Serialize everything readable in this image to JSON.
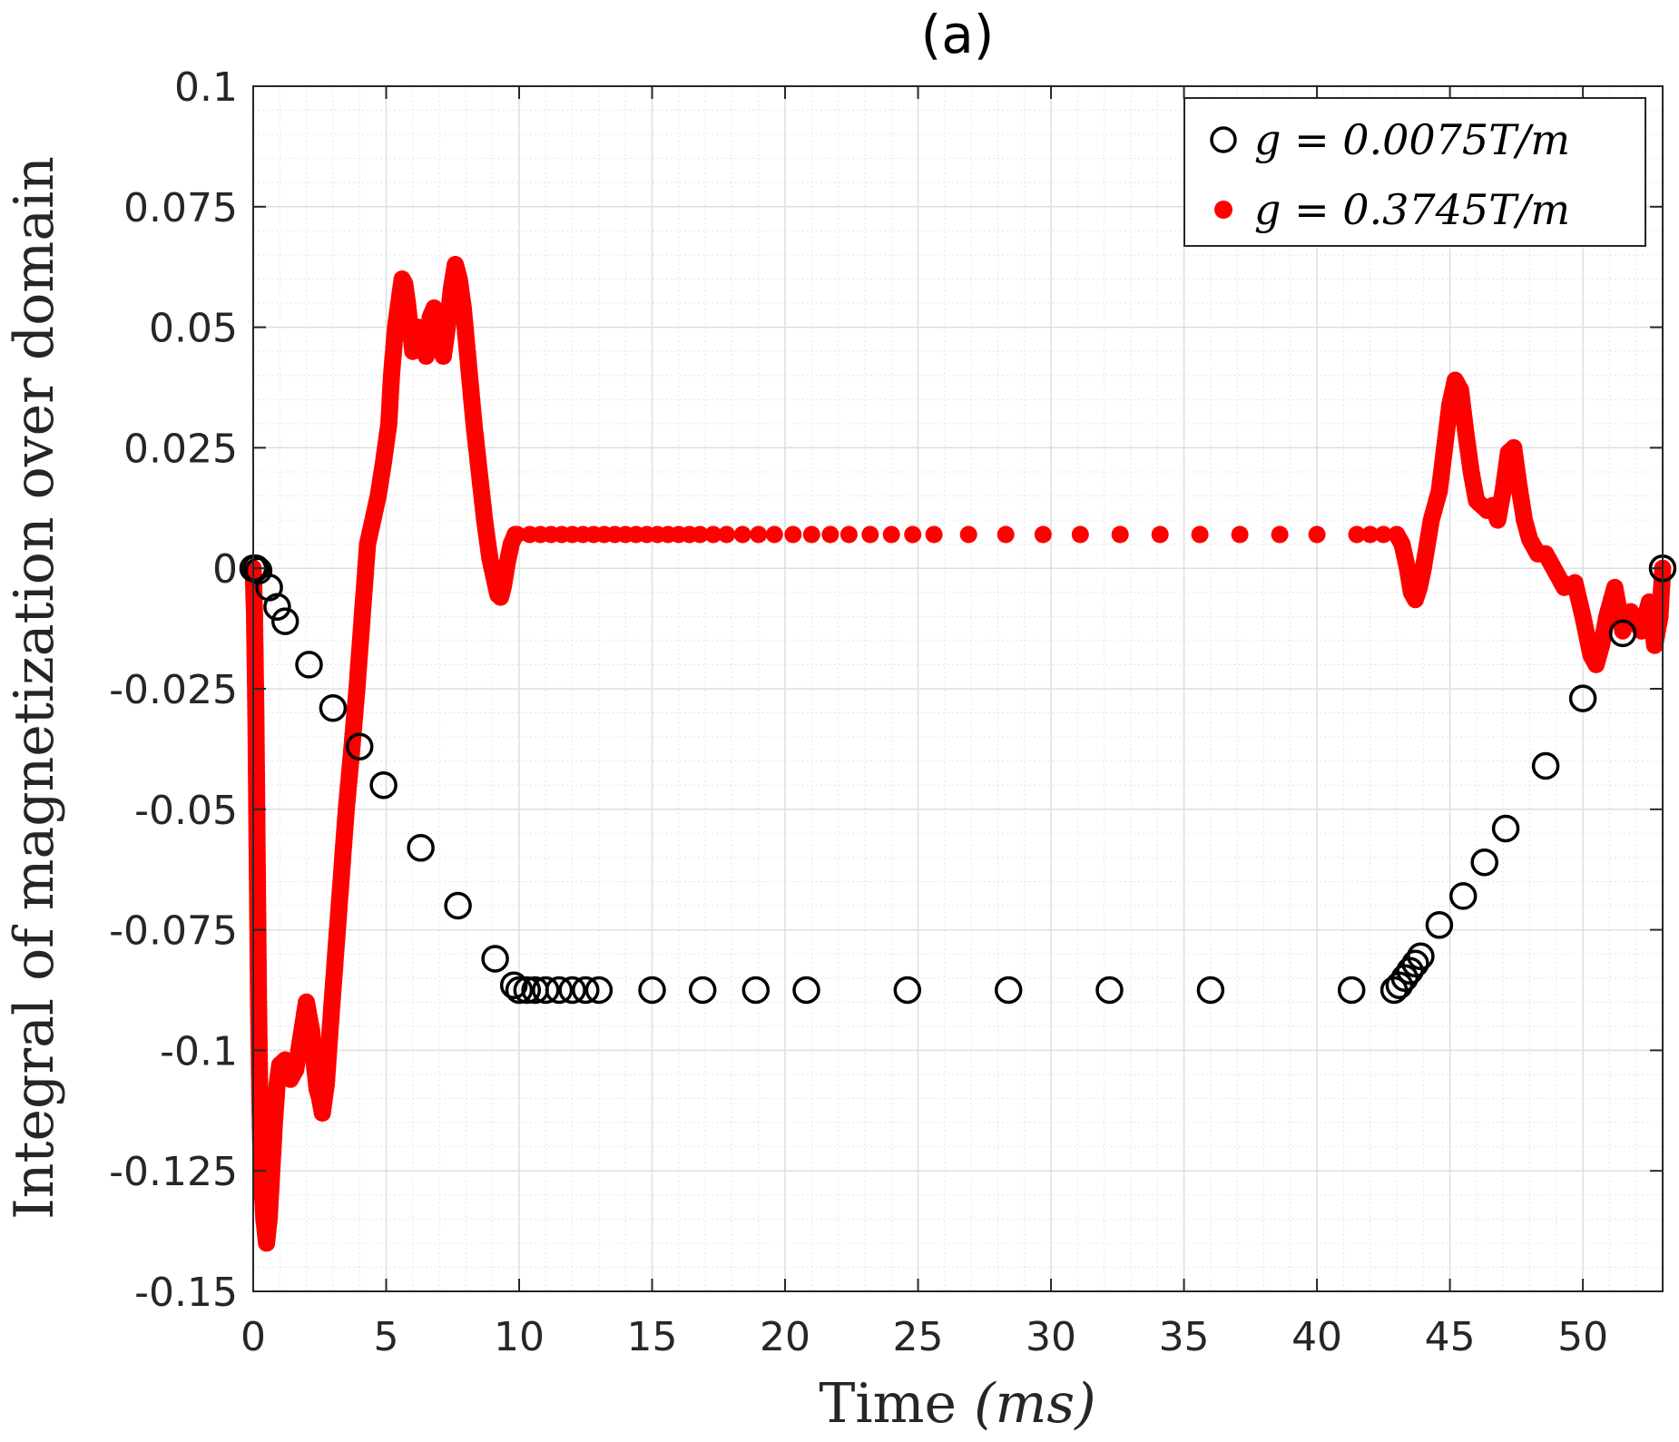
{
  "chart_data": {
    "type": "scatter",
    "title": "(a)",
    "xlabel": "Time (ms)",
    "xlabel_main": "Time",
    "xlabel_unit": "(ms)",
    "ylabel": "Integral of magnetization over domain",
    "xlim": [
      0,
      53
    ],
    "ylim": [
      -0.15,
      0.1
    ],
    "xticks": [
      0,
      5,
      10,
      15,
      20,
      25,
      30,
      35,
      40,
      45,
      50
    ],
    "xtick_labels": [
      "0",
      "5",
      "10",
      "15",
      "20",
      "25",
      "30",
      "35",
      "40",
      "45",
      "50"
    ],
    "yticks": [
      0.1,
      0.075,
      0.05,
      0.025,
      0,
      -0.025,
      -0.05,
      -0.075,
      -0.1,
      -0.125,
      -0.15
    ],
    "ytick_labels": [
      "0.1",
      "0.075",
      "0.05",
      "0.025",
      "0",
      "-0.025",
      "-0.05",
      "-0.075",
      "-0.1",
      "-0.125",
      "-0.15"
    ],
    "grid": true,
    "minor_grid": true,
    "legend_position": "top-right",
    "series": [
      {
        "name": "g = 0.0075T/m",
        "marker": "open-circle",
        "color": "#000000",
        "points": [
          [
            0,
            0
          ],
          [
            0.1,
            0
          ],
          [
            0.2,
            -0.0005
          ],
          [
            0.6,
            -0.004
          ],
          [
            0.9,
            -0.008
          ],
          [
            1.2,
            -0.011
          ],
          [
            2.1,
            -0.02
          ],
          [
            3.0,
            -0.029
          ],
          [
            4.0,
            -0.037
          ],
          [
            4.9,
            -0.045
          ],
          [
            6.3,
            -0.058
          ],
          [
            7.7,
            -0.07
          ],
          [
            9.1,
            -0.081
          ],
          [
            9.8,
            -0.0865
          ],
          [
            10.0,
            -0.0875
          ],
          [
            10.3,
            -0.0875
          ],
          [
            10.6,
            -0.0875
          ],
          [
            11.0,
            -0.0875
          ],
          [
            11.5,
            -0.0875
          ],
          [
            12.0,
            -0.0875
          ],
          [
            12.5,
            -0.0875
          ],
          [
            13.0,
            -0.0875
          ],
          [
            15.0,
            -0.0875
          ],
          [
            16.9,
            -0.0875
          ],
          [
            18.9,
            -0.0875
          ],
          [
            20.8,
            -0.0875
          ],
          [
            24.6,
            -0.0875
          ],
          [
            28.4,
            -0.0875
          ],
          [
            32.2,
            -0.0875
          ],
          [
            36.0,
            -0.0875
          ],
          [
            41.3,
            -0.0875
          ],
          [
            42.9,
            -0.0875
          ],
          [
            43.1,
            -0.0865
          ],
          [
            43.3,
            -0.085
          ],
          [
            43.5,
            -0.0835
          ],
          [
            43.7,
            -0.082
          ],
          [
            43.9,
            -0.0805
          ],
          [
            44.6,
            -0.074
          ],
          [
            45.5,
            -0.068
          ],
          [
            46.3,
            -0.061
          ],
          [
            47.1,
            -0.054
          ],
          [
            48.6,
            -0.041
          ],
          [
            50.0,
            -0.027
          ],
          [
            51.5,
            -0.0135
          ],
          [
            53.0,
            0
          ]
        ]
      },
      {
        "name": "g = 0.3745T/m",
        "marker": "filled-dot",
        "color": "#ff0000",
        "curve": [
          [
            0,
            0
          ],
          [
            0.05,
            -0.01
          ],
          [
            0.1,
            -0.03
          ],
          [
            0.15,
            -0.06
          ],
          [
            0.2,
            -0.09
          ],
          [
            0.25,
            -0.11
          ],
          [
            0.3,
            -0.125
          ],
          [
            0.4,
            -0.135
          ],
          [
            0.5,
            -0.14
          ],
          [
            0.6,
            -0.135
          ],
          [
            0.7,
            -0.125
          ],
          [
            0.8,
            -0.115
          ],
          [
            0.9,
            -0.107
          ],
          [
            1.0,
            -0.103
          ],
          [
            1.2,
            -0.102
          ],
          [
            1.4,
            -0.106
          ],
          [
            1.6,
            -0.104
          ],
          [
            1.8,
            -0.097
          ],
          [
            2.0,
            -0.09
          ],
          [
            2.2,
            -0.096
          ],
          [
            2.3,
            -0.103
          ],
          [
            2.4,
            -0.108
          ],
          [
            2.5,
            -0.11
          ],
          [
            2.6,
            -0.113
          ],
          [
            2.75,
            -0.107
          ],
          [
            2.9,
            -0.095
          ],
          [
            3.1,
            -0.08
          ],
          [
            3.3,
            -0.065
          ],
          [
            3.5,
            -0.05
          ],
          [
            3.7,
            -0.038
          ],
          [
            3.9,
            -0.025
          ],
          [
            4.1,
            -0.01
          ],
          [
            4.3,
            0.005
          ],
          [
            4.5,
            0.01
          ],
          [
            4.7,
            0.015
          ],
          [
            4.9,
            0.022
          ],
          [
            5.1,
            0.03
          ],
          [
            5.2,
            0.04
          ],
          [
            5.35,
            0.05
          ],
          [
            5.5,
            0.056
          ],
          [
            5.6,
            0.06
          ],
          [
            5.7,
            0.059
          ],
          [
            5.8,
            0.055
          ],
          [
            5.9,
            0.05
          ],
          [
            6.0,
            0.045
          ],
          [
            6.2,
            0.05
          ],
          [
            6.35,
            0.046
          ],
          [
            6.5,
            0.044
          ],
          [
            6.65,
            0.052
          ],
          [
            6.8,
            0.054
          ],
          [
            6.9,
            0.05
          ],
          [
            7.0,
            0.046
          ],
          [
            7.15,
            0.044
          ],
          [
            7.3,
            0.05
          ],
          [
            7.45,
            0.058
          ],
          [
            7.6,
            0.063
          ],
          [
            7.75,
            0.06
          ],
          [
            7.9,
            0.054
          ],
          [
            8.1,
            0.042
          ],
          [
            8.3,
            0.03
          ],
          [
            8.5,
            0.02
          ],
          [
            8.7,
            0.01
          ],
          [
            8.9,
            0.002
          ],
          [
            9.1,
            -0.003
          ],
          [
            9.2,
            -0.0055
          ],
          [
            9.3,
            -0.006
          ],
          [
            9.4,
            -0.004
          ],
          [
            9.55,
            0.001
          ],
          [
            9.7,
            0.005
          ],
          [
            9.85,
            0.007
          ],
          [
            10.0,
            0.007
          ],
          [
            43.0,
            0.007
          ],
          [
            43.2,
            0.005
          ],
          [
            43.4,
            0.0
          ],
          [
            43.55,
            -0.005
          ],
          [
            43.7,
            -0.0065
          ],
          [
            43.85,
            -0.004
          ],
          [
            44.0,
            0.0
          ],
          [
            44.3,
            0.01
          ],
          [
            44.6,
            0.016
          ],
          [
            44.8,
            0.025
          ],
          [
            45.0,
            0.034
          ],
          [
            45.2,
            0.039
          ],
          [
            45.4,
            0.037
          ],
          [
            45.6,
            0.028
          ],
          [
            45.8,
            0.02
          ],
          [
            46.0,
            0.014
          ],
          [
            46.2,
            0.013
          ],
          [
            46.4,
            0.012
          ],
          [
            46.6,
            0.013
          ],
          [
            46.8,
            0.01
          ],
          [
            47.0,
            0.016
          ],
          [
            47.2,
            0.024
          ],
          [
            47.4,
            0.025
          ],
          [
            47.6,
            0.017
          ],
          [
            47.8,
            0.01
          ],
          [
            48.0,
            0.006
          ],
          [
            48.3,
            0.003
          ],
          [
            48.6,
            0.003
          ],
          [
            48.9,
            0.0
          ],
          [
            49.3,
            -0.004
          ],
          [
            49.7,
            -0.003
          ],
          [
            50.0,
            -0.01
          ],
          [
            50.3,
            -0.018
          ],
          [
            50.5,
            -0.02
          ],
          [
            50.7,
            -0.016
          ],
          [
            50.9,
            -0.01
          ],
          [
            51.2,
            -0.004
          ],
          [
            51.5,
            -0.013
          ],
          [
            51.8,
            -0.009
          ],
          [
            52.2,
            -0.013
          ],
          [
            52.5,
            -0.007
          ],
          [
            52.7,
            -0.016
          ],
          [
            52.9,
            -0.01
          ],
          [
            53.0,
            0
          ]
        ],
        "sparse_x": [
          10.4,
          10.8,
          11.2,
          11.6,
          12.0,
          12.4,
          12.8,
          13.2,
          13.6,
          14.0,
          14.4,
          14.8,
          15.2,
          15.6,
          16.0,
          16.4,
          16.8,
          17.3,
          17.8,
          18.4,
          19.0,
          19.6,
          20.3,
          21.0,
          21.7,
          22.4,
          23.2,
          24.0,
          24.8,
          25.6,
          26.9,
          28.3,
          29.7,
          31.1,
          32.6,
          34.1,
          35.6,
          37.1,
          38.6,
          40.0,
          41.5,
          42.0,
          42.5
        ]
      }
    ]
  }
}
